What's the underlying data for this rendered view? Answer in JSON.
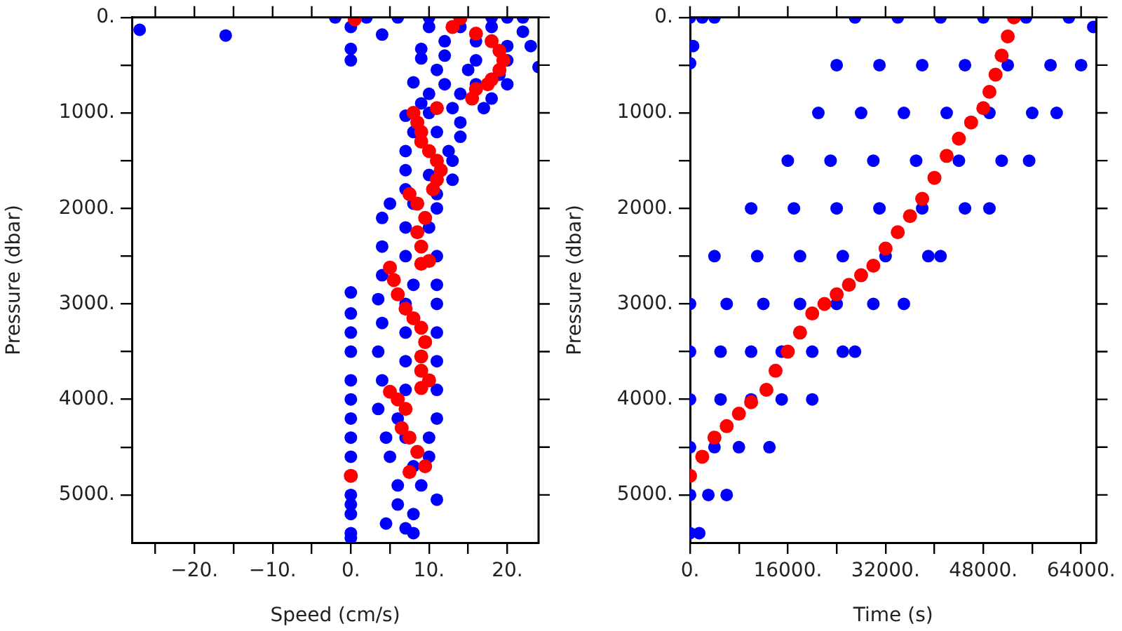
{
  "chart_data": [
    {
      "type": "scatter",
      "xlabel": "Speed (cm/s)",
      "ylabel": "Pressure (dbar)",
      "xlim": [
        -28,
        24
      ],
      "ylim": [
        5500,
        0
      ],
      "xticks": [
        {
          "value": -25,
          "label": null
        },
        {
          "value": -20,
          "label": "−20."
        },
        {
          "value": -15,
          "label": null
        },
        {
          "value": -10,
          "label": "−10."
        },
        {
          "value": -5,
          "label": null
        },
        {
          "value": 0,
          "label": "0."
        },
        {
          "value": 5,
          "label": null
        },
        {
          "value": 10,
          "label": "10."
        },
        {
          "value": 15,
          "label": null
        },
        {
          "value": 20,
          "label": "20."
        }
      ],
      "yticks": [
        {
          "value": 0,
          "label": "0."
        },
        {
          "value": 500,
          "label": null
        },
        {
          "value": 1000,
          "label": "1000."
        },
        {
          "value": 1500,
          "label": null
        },
        {
          "value": 2000,
          "label": "2000."
        },
        {
          "value": 2500,
          "label": null
        },
        {
          "value": 3000,
          "label": "3000."
        },
        {
          "value": 3500,
          "label": null
        },
        {
          "value": 4000,
          "label": "4000."
        },
        {
          "value": 4500,
          "label": null
        },
        {
          "value": 5000,
          "label": "5000."
        }
      ],
      "marker": "circle",
      "legend": false,
      "grid": false,
      "series": [
        {
          "color": "#0000ff",
          "x": [
            -27,
            -16,
            4,
            0,
            0,
            0,
            0,
            -2,
            2,
            6,
            10,
            20,
            18,
            22,
            10,
            14,
            18,
            22,
            12,
            16,
            20,
            23,
            9,
            9,
            12,
            16,
            20,
            24,
            11,
            15,
            19,
            8,
            12,
            16,
            20,
            10,
            14,
            18,
            9,
            13,
            17,
            7,
            10,
            14,
            8,
            11,
            14,
            7,
            12.5,
            13,
            7,
            10,
            13,
            7,
            11,
            5,
            8,
            11,
            4,
            7,
            10,
            4,
            7,
            11,
            4,
            8,
            11,
            3.5,
            7,
            11,
            4,
            7,
            11,
            3.5,
            7,
            11,
            4,
            7,
            11,
            3.5,
            6,
            11,
            4.5,
            7,
            10,
            5,
            8,
            10,
            6,
            9,
            11,
            6,
            8,
            4.5,
            7,
            8,
            0,
            0,
            0,
            0,
            0,
            0,
            0,
            0,
            0,
            0,
            0,
            0,
            0
          ],
          "values": [
            130,
            190,
            180,
            100,
            330,
            450,
            2880,
            0,
            0,
            0,
            0,
            0,
            0,
            0,
            100,
            100,
            100,
            150,
            250,
            250,
            300,
            300,
            330,
            430,
            400,
            450,
            450,
            520,
            550,
            550,
            600,
            680,
            700,
            700,
            700,
            800,
            800,
            850,
            900,
            950,
            950,
            1030,
            1000,
            1100,
            1200,
            1200,
            1250,
            1400,
            1400,
            1500,
            1600,
            1650,
            1700,
            1800,
            1850,
            1950,
            1950,
            2000,
            2100,
            2200,
            2200,
            2400,
            2500,
            2500,
            2700,
            2800,
            2800,
            2950,
            3000,
            3000,
            3200,
            3300,
            3300,
            3500,
            3600,
            3600,
            3800,
            3900,
            3900,
            4100,
            4200,
            4200,
            4400,
            4400,
            4400,
            4600,
            4700,
            4600,
            4900,
            4900,
            5050,
            5100,
            5200,
            5300,
            5350,
            5400,
            3100,
            3300,
            3500,
            3800,
            4000,
            4200,
            4400,
            4600,
            5100,
            5000,
            5200,
            5400,
            5450
          ]
        },
        {
          "color": "#ff0000",
          "x": [
            0.5,
            14,
            13,
            16,
            18,
            19,
            19.5,
            19,
            18,
            17.5,
            16,
            15.5,
            11,
            8,
            8.5,
            9,
            9,
            10,
            11,
            11.5,
            11,
            10.5,
            7.5,
            8.5,
            9.5,
            8.5,
            9,
            10,
            9,
            5,
            5.5,
            6,
            7,
            8,
            9,
            9.5,
            9,
            9,
            10,
            9,
            5,
            6,
            7,
            6.5,
            7.5,
            8.5,
            9.5,
            7.5,
            0
          ],
          "values": [
            20,
            10,
            100,
            170,
            250,
            350,
            450,
            550,
            650,
            700,
            750,
            850,
            950,
            1000,
            1100,
            1200,
            1300,
            1400,
            1500,
            1600,
            1700,
            1800,
            1850,
            1950,
            2100,
            2250,
            2400,
            2550,
            2580,
            2620,
            2750,
            2900,
            3050,
            3150,
            3250,
            3400,
            3550,
            3700,
            3800,
            3880,
            3920,
            4000,
            4100,
            4300,
            4400,
            4550,
            4700,
            4760,
            4800
          ]
        }
      ]
    },
    {
      "type": "scatter",
      "xlabel": "Time (s)",
      "ylabel": "Pressure (dbar)",
      "xlim": [
        0,
        66500
      ],
      "ylim": [
        5500,
        0
      ],
      "xticks": [
        {
          "value": 0,
          "label": "0."
        },
        {
          "value": 8000,
          "label": null
        },
        {
          "value": 16000,
          "label": "16000."
        },
        {
          "value": 24000,
          "label": null
        },
        {
          "value": 32000,
          "label": "32000."
        },
        {
          "value": 40000,
          "label": null
        },
        {
          "value": 48000,
          "label": "48000."
        },
        {
          "value": 56000,
          "label": null
        },
        {
          "value": 64000,
          "label": "64000."
        }
      ],
      "yticks": [
        {
          "value": 0,
          "label": "0."
        },
        {
          "value": 500,
          "label": null
        },
        {
          "value": 1000,
          "label": "1000."
        },
        {
          "value": 1500,
          "label": null
        },
        {
          "value": 2000,
          "label": "2000."
        },
        {
          "value": 2500,
          "label": null
        },
        {
          "value": 3000,
          "label": "3000."
        },
        {
          "value": 3500,
          "label": null
        },
        {
          "value": 4000,
          "label": "4000."
        },
        {
          "value": 4500,
          "label": null
        },
        {
          "value": 5000,
          "label": "5000."
        }
      ],
      "marker": "circle",
      "legend": false,
      "grid": false,
      "series": [
        {
          "color": "#0000ff",
          "x": [
            0,
            2000,
            4000,
            500,
            0,
            27000,
            34000,
            41000,
            48000,
            55000,
            62000,
            66000,
            24000,
            31000,
            38000,
            45000,
            52000,
            59000,
            64000,
            21000,
            28000,
            35000,
            42000,
            49000,
            56000,
            60000,
            16000,
            23000,
            30000,
            37000,
            44000,
            51000,
            55500,
            10000,
            17000,
            24000,
            31000,
            38000,
            45000,
            49000,
            4000,
            11000,
            18000,
            25000,
            32000,
            39000,
            41000,
            0,
            6000,
            12000,
            18000,
            24000,
            30000,
            35000,
            0,
            5000,
            10000,
            15000,
            20000,
            25000,
            27000,
            0,
            5000,
            10000,
            15000,
            20000,
            0,
            4000,
            8000,
            13000,
            0,
            3000,
            6000,
            0,
            1500
          ],
          "values": [
            0,
            0,
            0,
            300,
            480,
            0,
            0,
            0,
            0,
            0,
            0,
            100,
            500,
            500,
            500,
            500,
            500,
            500,
            500,
            1000,
            1000,
            1000,
            1000,
            1000,
            1000,
            1000,
            1500,
            1500,
            1500,
            1500,
            1500,
            1500,
            1500,
            2000,
            2000,
            2000,
            2000,
            2000,
            2000,
            2000,
            2500,
            2500,
            2500,
            2500,
            2500,
            2500,
            2500,
            3000,
            3000,
            3000,
            3000,
            3000,
            3000,
            3000,
            3500,
            3500,
            3500,
            3500,
            3500,
            3500,
            3500,
            4000,
            4000,
            4000,
            4000,
            4000,
            4500,
            4500,
            4500,
            4500,
            5000,
            5000,
            5000,
            5400,
            5400
          ]
        },
        {
          "color": "#ff0000",
          "x": [
            0,
            2000,
            4000,
            6000,
            8000,
            10000,
            12500,
            14000,
            16000,
            18000,
            20000,
            22000,
            24000,
            26000,
            28000,
            30000,
            32000,
            34000,
            36000,
            38000,
            40000,
            42000,
            44000,
            46000,
            48000,
            49000,
            50000,
            51000,
            52000,
            53000
          ],
          "values": [
            4800,
            4600,
            4400,
            4280,
            4150,
            4030,
            3900,
            3700,
            3500,
            3300,
            3100,
            3000,
            2900,
            2800,
            2700,
            2600,
            2420,
            2250,
            2080,
            1900,
            1680,
            1450,
            1270,
            1100,
            950,
            780,
            600,
            400,
            200,
            0
          ]
        }
      ]
    }
  ]
}
